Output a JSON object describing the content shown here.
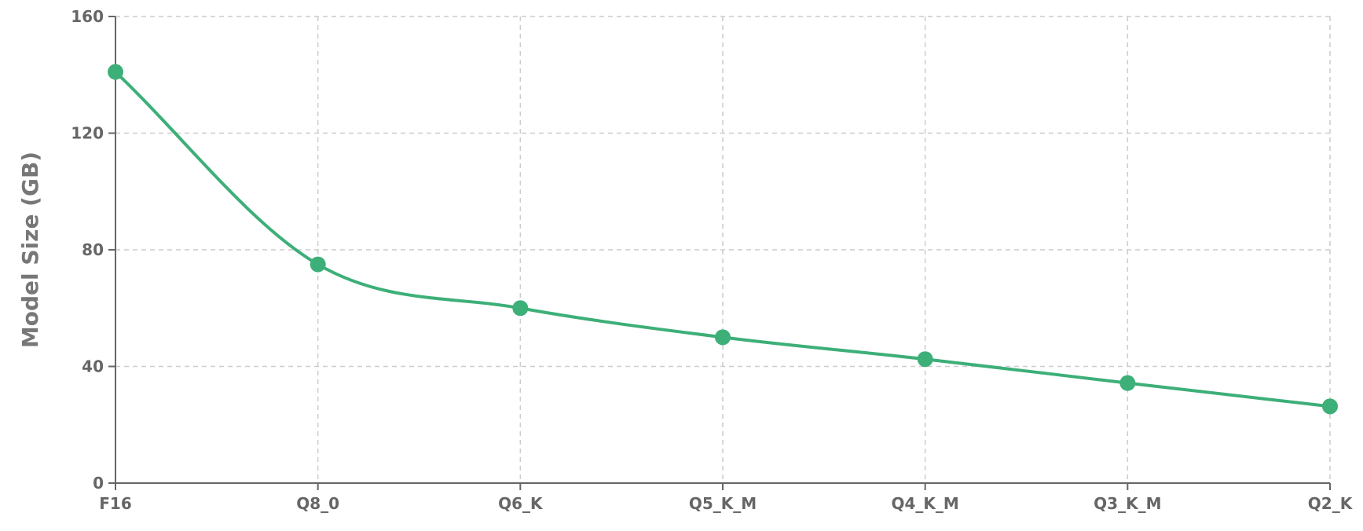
{
  "chart_data": {
    "type": "line",
    "title": "",
    "xlabel": "",
    "ylabel": "Model Size (GB)",
    "categories": [
      "F16",
      "Q8_0",
      "Q6_K",
      "Q5_K_M",
      "Q4_K_M",
      "Q3_K_M",
      "Q2_K"
    ],
    "series": [
      {
        "values": [
          141,
          75,
          60,
          50,
          42.5,
          34.3,
          26.3
        ]
      }
    ],
    "ylim": [
      0,
      160
    ],
    "yticks": [
      0,
      40,
      80,
      120,
      160
    ],
    "grid": true,
    "legend": "none",
    "colors": {
      "series": "#3daf78",
      "axis": "#666666",
      "grid": "#cccccc"
    }
  }
}
